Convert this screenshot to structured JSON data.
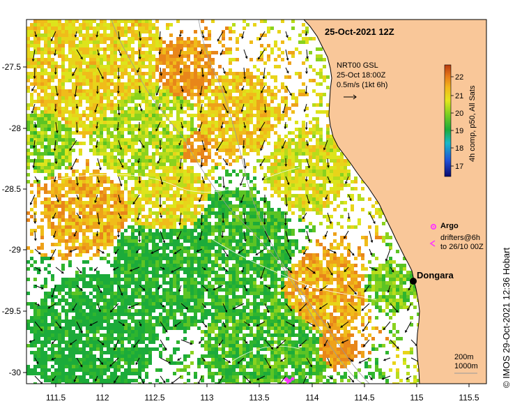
{
  "map": {
    "datetime_label": "25-Oct-2021 12Z",
    "model": {
      "line1": "NRT00 GSL",
      "line2": "25-Oct 18:00Z",
      "line3": "0.5m/s (1kt 6h)"
    },
    "lon_ticks": [
      "111.5",
      "112",
      "112.5",
      "113",
      "113.5",
      "114",
      "114.5",
      "115",
      "115.5"
    ],
    "lat_ticks": [
      "-27.5",
      "-28",
      "-28.5",
      "-29",
      "-29.5",
      "-30"
    ],
    "colorbar": {
      "ticks": [
        "22",
        "21",
        "20",
        "19",
        "18",
        "17"
      ],
      "label": "4h comp, p50, All Sats",
      "colors": [
        "#0a0a6e",
        "#1f4fd6",
        "#19b8c8",
        "#1cab3a",
        "#7fd020",
        "#e3e61e",
        "#f2b51c",
        "#e6781a",
        "#b83a0f"
      ]
    },
    "legend": {
      "argo": "Argo",
      "drifters_line1": "drifters@6h",
      "drifters_line2": "to 26/10 00Z",
      "argo_color": "#ff33ff",
      "drifter_color": "#ff33ff"
    },
    "place": "Dongara",
    "scale": {
      "line1": "200m",
      "line2": "1000m"
    },
    "credit": "© IMOS 29-Oct-2021 12:36 Hobart",
    "land_color": "#f9c799",
    "icons": [
      "argo-float-icon",
      "drifter-icon",
      "dongara-town-icon"
    ]
  }
}
